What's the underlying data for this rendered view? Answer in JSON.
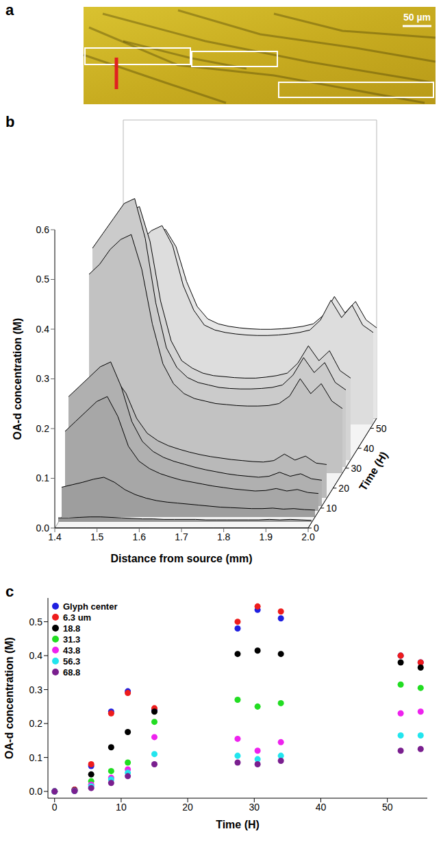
{
  "chart_data": [
    {
      "panel": "a",
      "type": "image",
      "scale_bar_label": "50 µm"
    },
    {
      "panel": "b",
      "type": "waterfall",
      "x_label": "Distance from source (mm)",
      "y_label": "OA-d concentration (M)",
      "z_label": "Time (H)",
      "x": [
        1.4,
        1.425,
        1.45,
        1.475,
        1.5,
        1.525,
        1.55,
        1.575,
        1.6,
        1.625,
        1.65,
        1.675,
        1.7,
        1.725,
        1.75,
        1.775,
        1.8,
        1.825,
        1.85,
        1.875,
        1.9,
        1.925,
        1.95,
        1.975,
        2.0
      ],
      "xlim": [
        1.4,
        2.0
      ],
      "xticks": [
        1.4,
        1.5,
        1.6,
        1.7,
        1.8,
        1.9,
        {
          "value": 2.0,
          "label": "2.0"
        }
      ],
      "ylim": [
        0,
        0.6
      ],
      "yticks": [
        {
          "value": 0,
          "label": "0.0"
        },
        0.1,
        0.2,
        0.3,
        0.4,
        0.5,
        0.6
      ],
      "zlim": [
        0,
        55
      ],
      "zticks": [
        0,
        10,
        20,
        30,
        40,
        50
      ],
      "grid": true,
      "series": [
        {
          "time": 0,
          "values": [
            0,
            0,
            0,
            0,
            0,
            0,
            0,
            0,
            0,
            0,
            0,
            0,
            0,
            0,
            0,
            0,
            0,
            0,
            0,
            0,
            0,
            0,
            0,
            0,
            0
          ]
        },
        {
          "time": 3,
          "values": [
            0.008,
            0.008,
            0.009,
            0.01,
            0.01,
            0.009,
            0.008,
            0.007,
            0.006,
            0.006,
            0.005,
            0.005,
            0.005,
            0.005,
            0.004,
            0.004,
            0.004,
            0.004,
            0.004,
            0.004,
            0.005,
            0.004,
            0.005,
            0.004,
            0.003
          ]
        },
        {
          "time": 5.5,
          "values": [
            0.06,
            0.065,
            0.07,
            0.076,
            0.08,
            0.07,
            0.055,
            0.045,
            0.038,
            0.033,
            0.03,
            0.028,
            0.026,
            0.024,
            0.022,
            0.02,
            0.019,
            0.018,
            0.017,
            0.017,
            0.018,
            0.016,
            0.017,
            0.015,
            0.014
          ]
        },
        {
          "time": 8.5,
          "values": [
            0.16,
            0.18,
            0.2,
            0.22,
            0.23,
            0.19,
            0.13,
            0.1,
            0.085,
            0.075,
            0.068,
            0.062,
            0.058,
            0.054,
            0.05,
            0.047,
            0.044,
            0.042,
            0.04,
            0.041,
            0.045,
            0.04,
            0.043,
            0.037,
            0.035
          ]
        },
        {
          "time": 11,
          "values": [
            0.22,
            0.24,
            0.26,
            0.28,
            0.29,
            0.24,
            0.17,
            0.13,
            0.11,
            0.098,
            0.09,
            0.084,
            0.078,
            0.073,
            0.069,
            0.065,
            0.062,
            0.06,
            0.058,
            0.06,
            0.068,
            0.06,
            0.065,
            0.055,
            0.052
          ]
        },
        {
          "time": 15,
          "values": [
            0.2,
            0.21,
            0.22,
            0.235,
            0.24,
            0.21,
            0.16,
            0.13,
            0.115,
            0.105,
            0.098,
            0.092,
            0.087,
            0.083,
            0.08,
            0.077,
            0.075,
            0.073,
            0.072,
            0.075,
            0.088,
            0.076,
            0.084,
            0.07,
            0.067
          ]
        },
        {
          "time": 27.5,
          "values": [
            0.4,
            0.42,
            0.45,
            0.47,
            0.48,
            0.41,
            0.3,
            0.22,
            0.18,
            0.16,
            0.15,
            0.145,
            0.14,
            0.138,
            0.136,
            0.135,
            0.135,
            0.136,
            0.14,
            0.155,
            0.19,
            0.16,
            0.18,
            0.145,
            0.13
          ]
        },
        {
          "time": 30.5,
          "values": [
            0.44,
            0.47,
            0.5,
            0.53,
            0.54,
            0.46,
            0.33,
            0.24,
            0.2,
            0.18,
            0.17,
            0.165,
            0.16,
            0.158,
            0.157,
            0.157,
            0.158,
            0.16,
            0.165,
            0.185,
            0.22,
            0.19,
            0.21,
            0.17,
            0.155
          ]
        },
        {
          "time": 34,
          "values": [
            0.42,
            0.45,
            0.48,
            0.5,
            0.51,
            0.44,
            0.32,
            0.24,
            0.2,
            0.185,
            0.175,
            0.17,
            0.168,
            0.166,
            0.165,
            0.165,
            0.167,
            0.17,
            0.175,
            0.195,
            0.23,
            0.2,
            0.22,
            0.18,
            0.165
          ]
        },
        {
          "time": 52,
          "values": [
            0.33,
            0.35,
            0.37,
            0.39,
            0.4,
            0.36,
            0.28,
            0.23,
            0.2,
            0.19,
            0.185,
            0.182,
            0.18,
            0.179,
            0.179,
            0.18,
            0.182,
            0.185,
            0.19,
            0.21,
            0.25,
            0.215,
            0.24,
            0.2,
            0.185
          ]
        },
        {
          "time": 55,
          "values": [
            0.32,
            0.34,
            0.36,
            0.375,
            0.38,
            0.345,
            0.275,
            0.225,
            0.2,
            0.19,
            0.185,
            0.182,
            0.18,
            0.179,
            0.179,
            0.18,
            0.182,
            0.185,
            0.19,
            0.208,
            0.245,
            0.212,
            0.235,
            0.198,
            0.182
          ]
        }
      ]
    },
    {
      "panel": "c",
      "type": "scatter",
      "x_label": "Time (H)",
      "y_label": "OA-d concentration (M)",
      "marker": "circle",
      "legend": "upper left",
      "x": [
        0,
        3,
        5.5,
        8.5,
        11,
        15,
        27.5,
        30.5,
        34,
        52,
        55
      ],
      "xlim": [
        -1,
        56
      ],
      "xticks": [
        0,
        10,
        20,
        30,
        40,
        50
      ],
      "ylim": [
        -0.02,
        0.57
      ],
      "yticks": [
        {
          "value": 0,
          "label": "0.0"
        },
        0.1,
        0.2,
        0.3,
        0.4,
        0.5
      ],
      "series": [
        {
          "name": "Glyph center",
          "color": "#2020e0",
          "values": [
            0,
            0.005,
            0.075,
            0.235,
            0.295,
            0.24,
            0.48,
            0.535,
            0.51,
            0.4,
            0.38
          ]
        },
        {
          "name": "6.3 um",
          "color": "#ee1c1c",
          "values": [
            0,
            0.005,
            0.08,
            0.23,
            0.29,
            0.245,
            0.5,
            0.545,
            0.53,
            0.4,
            0.38
          ]
        },
        {
          "name": "18.8",
          "color": "#000000",
          "values": [
            0,
            0.003,
            0.05,
            0.13,
            0.175,
            0.235,
            0.405,
            0.415,
            0.405,
            0.38,
            0.365
          ]
        },
        {
          "name": "31.3",
          "color": "#22dd22",
          "values": [
            0,
            0.002,
            0.03,
            0.06,
            0.085,
            0.205,
            0.27,
            0.25,
            0.26,
            0.315,
            0.305
          ]
        },
        {
          "name": "43.8",
          "color": "#ee22ee",
          "values": [
            0,
            0.002,
            0.02,
            0.04,
            0.065,
            0.16,
            0.155,
            0.12,
            0.145,
            0.23,
            0.235
          ]
        },
        {
          "name": "56.3",
          "color": "#22e5ee",
          "values": [
            0,
            0.001,
            0.015,
            0.035,
            0.055,
            0.11,
            0.105,
            0.095,
            0.105,
            0.165,
            0.165
          ]
        },
        {
          "name": "68.8",
          "color": "#7a1f8f",
          "values": [
            0,
            0.001,
            0.01,
            0.025,
            0.045,
            0.08,
            0.085,
            0.08,
            0.09,
            0.12,
            0.125
          ]
        }
      ]
    }
  ]
}
